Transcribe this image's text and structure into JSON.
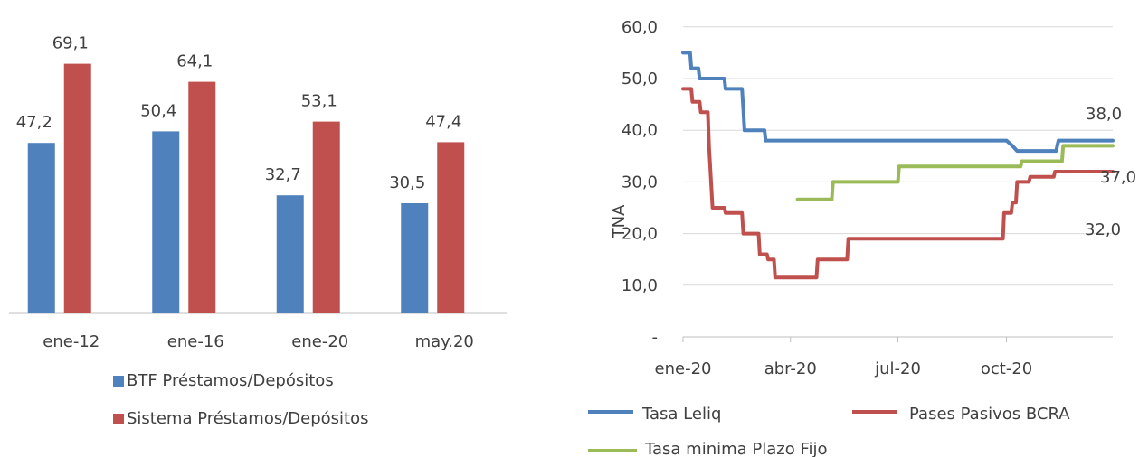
{
  "chart_data": [
    {
      "type": "bar",
      "categories": [
        "ene-12",
        "ene-16",
        "ene-20",
        "may.20"
      ],
      "series": [
        {
          "name": "BTF Préstamos/Depósitos",
          "values": [
            47.2,
            50.4,
            32.7,
            30.5
          ],
          "labels": [
            "47,2",
            "50,4",
            "32,7",
            "30,5"
          ],
          "color": "#4F81BD"
        },
        {
          "name": "Sistema Préstamos/Depósitos",
          "values": [
            69.1,
            64.1,
            53.1,
            47.4
          ],
          "labels": [
            "69,1",
            "64,1",
            "53,1",
            "47,4"
          ],
          "color": "#C0504D"
        }
      ],
      "ylim": [
        0,
        75
      ],
      "legend": "bottom",
      "grid": false
    },
    {
      "type": "line",
      "ylabel": "TNA",
      "x_ticks": [
        "ene-20",
        "abr-20",
        "jul-20",
        "oct-20"
      ],
      "y_ticks": [
        "-",
        "10,0",
        "20,0",
        "30,0",
        "40,0",
        "50,0",
        "60,0"
      ],
      "ylim": [
        0,
        60
      ],
      "grid": true,
      "legend": "bottom",
      "series": [
        {
          "name": "Tasa Leliq",
          "color": "#4F81BD",
          "end_label": "38,0",
          "points": [
            [
              "2020-01-01",
              55
            ],
            [
              "2020-01-07",
              55
            ],
            [
              "2020-01-08",
              52
            ],
            [
              "2020-01-14",
              52
            ],
            [
              "2020-01-15",
              50
            ],
            [
              "2020-02-05",
              50
            ],
            [
              "2020-02-06",
              48
            ],
            [
              "2020-02-20",
              48
            ],
            [
              "2020-02-21",
              44
            ],
            [
              "2020-02-22",
              40
            ],
            [
              "2020-03-10",
              40
            ],
            [
              "2020-03-11",
              38
            ],
            [
              "2020-10-01",
              38
            ],
            [
              "2020-10-06",
              37
            ],
            [
              "2020-10-10",
              36
            ],
            [
              "2020-11-12",
              36
            ],
            [
              "2020-11-14",
              38
            ],
            [
              "2020-12-30",
              38
            ]
          ]
        },
        {
          "name": "Pases Pasivos BCRA",
          "color": "#C0504D",
          "end_label": "32,0",
          "points": [
            [
              "2020-01-01",
              48
            ],
            [
              "2020-01-08",
              48
            ],
            [
              "2020-01-09",
              45.5
            ],
            [
              "2020-01-15",
              45.5
            ],
            [
              "2020-01-16",
              43.5
            ],
            [
              "2020-01-22",
              43.5
            ],
            [
              "2020-01-23",
              37
            ],
            [
              "2020-01-26",
              25
            ],
            [
              "2020-02-05",
              25
            ],
            [
              "2020-02-06",
              24
            ],
            [
              "2020-02-20",
              24
            ],
            [
              "2020-02-21",
              20
            ],
            [
              "2020-03-05",
              20
            ],
            [
              "2020-03-06",
              16
            ],
            [
              "2020-03-12",
              16
            ],
            [
              "2020-03-13",
              15
            ],
            [
              "2020-03-18",
              15
            ],
            [
              "2020-03-19",
              11.5
            ],
            [
              "2020-04-23",
              11.5
            ],
            [
              "2020-04-24",
              15
            ],
            [
              "2020-05-19",
              15
            ],
            [
              "2020-05-20",
              19
            ],
            [
              "2020-09-28",
              19
            ],
            [
              "2020-09-29",
              24
            ],
            [
              "2020-10-05",
              24
            ],
            [
              "2020-10-06",
              26
            ],
            [
              "2020-10-09",
              26
            ],
            [
              "2020-10-10",
              30
            ],
            [
              "2020-10-20",
              30
            ],
            [
              "2020-10-21",
              31
            ],
            [
              "2020-11-10",
              31
            ],
            [
              "2020-11-11",
              32
            ],
            [
              "2020-12-30",
              32
            ]
          ]
        },
        {
          "name": "Tasa minima Plazo Fijo",
          "color": "#9BBB59",
          "end_label": "37,0",
          "points": [
            [
              "2020-04-07",
              26.6
            ],
            [
              "2020-05-06",
              26.6
            ],
            [
              "2020-05-07",
              30
            ],
            [
              "2020-07-01",
              30
            ],
            [
              "2020-07-02",
              33
            ],
            [
              "2020-10-13",
              33
            ],
            [
              "2020-10-14",
              34
            ],
            [
              "2020-11-17",
              34
            ],
            [
              "2020-11-18",
              37
            ],
            [
              "2020-12-30",
              37
            ]
          ]
        }
      ]
    }
  ]
}
